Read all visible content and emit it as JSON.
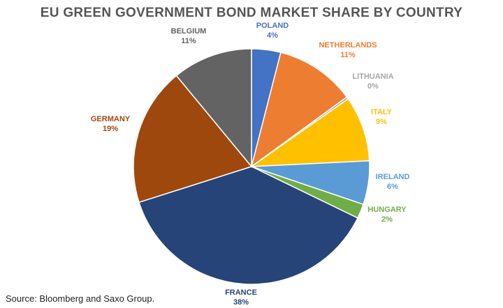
{
  "chart_data": {
    "type": "pie",
    "title": "EU GREEN GOVERNMENT BOND MARKET SHARE BY COUNTRY",
    "source": "Source: Bloomberg and Saxo Group.",
    "slices": [
      {
        "name": "POLAND",
        "value": 4,
        "label": "4%",
        "color": "#4472C4"
      },
      {
        "name": "NETHERLANDS",
        "value": 11,
        "label": "11%",
        "color": "#ED7D31"
      },
      {
        "name": "LITHUANIA",
        "value": 0.3,
        "label": "0%",
        "color": "#A5A5A5"
      },
      {
        "name": "ITALY",
        "value": 9,
        "label": "9%",
        "color": "#FFC000"
      },
      {
        "name": "IRELAND",
        "value": 6,
        "label": "6%",
        "color": "#5B9BD5"
      },
      {
        "name": "HUNGARY",
        "value": 2,
        "label": "2%",
        "color": "#70AD47"
      },
      {
        "name": "FRANCE",
        "value": 38,
        "label": "38%",
        "color": "#264478"
      },
      {
        "name": "GERMANY",
        "value": 19,
        "label": "19%",
        "color": "#9E480E"
      },
      {
        "name": "BELGIUM",
        "value": 11,
        "label": "11%",
        "color": "#636363"
      }
    ]
  }
}
